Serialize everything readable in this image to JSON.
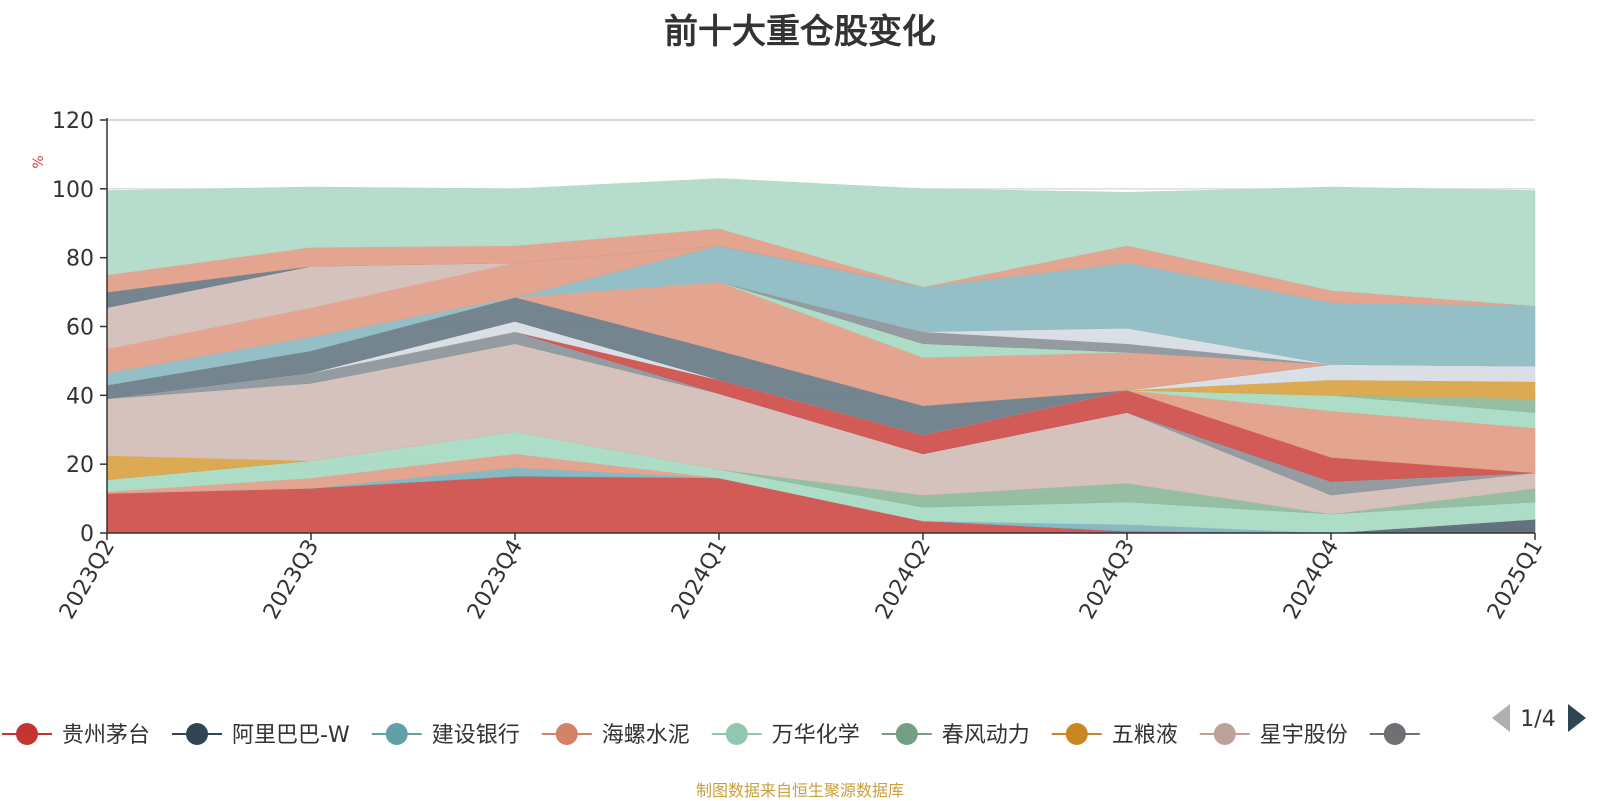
{
  "chart_data": {
    "type": "area",
    "title": "前十大重仓股变化",
    "ylabel": "%",
    "ylim": [
      0,
      120
    ],
    "y_ticks": [
      0,
      20,
      40,
      60,
      80,
      100,
      120
    ],
    "grid": true,
    "stacked": true,
    "categories": [
      "2023Q2",
      "2023Q3",
      "2023Q4",
      "2024Q1",
      "2024Q2",
      "2024Q3",
      "2024Q4",
      "2025Q1"
    ],
    "series": [
      {
        "name": "贵州茅台",
        "color": "#d0524f",
        "values": [
          11.5,
          13,
          16.5,
          16,
          3.5,
          0.5,
          0,
          0
        ]
      },
      {
        "name": "",
        "color": "#5a6b78",
        "values": [
          0,
          0,
          0,
          0,
          0,
          0,
          0,
          4
        ]
      },
      {
        "name": "建设银行",
        "color": "#7fb5c0",
        "values": [
          0,
          0,
          2.5,
          0,
          0,
          2,
          0,
          0
        ]
      },
      {
        "name": "海螺水泥",
        "color": "#e3a08a",
        "values": [
          0.5,
          3,
          4,
          0,
          0,
          0,
          0,
          0
        ]
      },
      {
        "name": "万华化学",
        "color": "#a9dbc4",
        "values": [
          3.5,
          5,
          6.5,
          2.5,
          4,
          6.5,
          5.5,
          5
        ]
      },
      {
        "name": "春风动力",
        "color": "#8fba9e",
        "values": [
          0,
          0,
          0,
          0,
          3.5,
          5.5,
          0,
          4
        ]
      },
      {
        "name": "五粮液",
        "color": "#dba54b",
        "values": [
          7,
          0,
          0,
          0,
          0,
          0,
          0,
          0
        ]
      },
      {
        "name": "星宇股份",
        "color": "#d4bfb8",
        "values": [
          16.5,
          22.5,
          25.5,
          22,
          12,
          20.5,
          5.5,
          4.5
        ]
      },
      {
        "name": "",
        "color": "#8e979d",
        "values": [
          0,
          3,
          3.5,
          0,
          0,
          0,
          4,
          0
        ]
      },
      {
        "name": "",
        "color": "#d0524f",
        "values": [
          0,
          0,
          0,
          4,
          5.5,
          6.5,
          7,
          0
        ]
      },
      {
        "name": "",
        "color": "#e3a08a",
        "values": [
          0,
          0,
          0,
          0,
          0,
          0,
          13.5,
          13
        ]
      },
      {
        "name": "",
        "color": "#a9dbc4",
        "values": [
          0,
          0,
          0,
          0,
          0,
          0,
          4.5,
          4.5
        ]
      },
      {
        "name": "",
        "color": "#8fba9e",
        "values": [
          0,
          0,
          0,
          0,
          0,
          0,
          0,
          4
        ]
      },
      {
        "name": "",
        "color": "#dba54b",
        "values": [
          0,
          0,
          0,
          0,
          0,
          0,
          4.5,
          5
        ]
      },
      {
        "name": "",
        "color": "#d8dde5",
        "values": [
          0,
          0,
          3,
          0,
          0,
          0,
          4.5,
          4.5
        ]
      },
      {
        "name": "",
        "color": "#6d7e8a",
        "values": [
          4,
          6.5,
          7,
          8.5,
          8.5,
          0,
          0,
          0
        ]
      },
      {
        "name": "",
        "color": "#e3a08a",
        "values": [
          0,
          0,
          0,
          20,
          14,
          11,
          0,
          0
        ]
      },
      {
        "name": "",
        "color": "#a9dbc4",
        "values": [
          0,
          0,
          0,
          0,
          4,
          0,
          0,
          0
        ]
      },
      {
        "name": "",
        "color": "#8e979d",
        "values": [
          0,
          0,
          0,
          0,
          3.5,
          2.5,
          0,
          0
        ]
      },
      {
        "name": "",
        "color": "#d8dde5",
        "values": [
          0,
          0,
          0,
          0,
          0,
          4.5,
          0,
          0
        ]
      },
      {
        "name": "",
        "color": "#8fbcc4",
        "values": [
          3.5,
          4,
          0,
          10.5,
          13,
          19,
          18,
          17.5
        ]
      },
      {
        "name": "",
        "color": "#e3a08a",
        "values": [
          7,
          8.5,
          10,
          0,
          0,
          5,
          3.5,
          0
        ]
      },
      {
        "name": "",
        "color": "#d4bfb8",
        "values": [
          12,
          12,
          0,
          0,
          0,
          0,
          0,
          0
        ]
      },
      {
        "name": "",
        "color": "#6d7e8a",
        "values": [
          4.5,
          0,
          0,
          0,
          0,
          0,
          0,
          0
        ]
      },
      {
        "name": "",
        "color": "#e3a08a",
        "values": [
          5,
          5.5,
          5,
          5,
          0,
          0,
          0,
          0
        ]
      },
      {
        "name": "",
        "color": "#b2dac8",
        "values": [
          24.5,
          17.5,
          16.5,
          14.5,
          28.5,
          15.5,
          30,
          33.5
        ]
      }
    ],
    "legend": {
      "position": "bottom",
      "page_indicator": "1/4",
      "items": [
        {
          "name": "贵州茅台",
          "color": "#c23531"
        },
        {
          "name": "阿里巴巴-W",
          "color": "#2f4554"
        },
        {
          "name": "建设银行",
          "color": "#61a0a8"
        },
        {
          "name": "海螺水泥",
          "color": "#d48265"
        },
        {
          "name": "万华化学",
          "color": "#91c7ae"
        },
        {
          "name": "春风动力",
          "color": "#749f83"
        },
        {
          "name": "五粮液",
          "color": "#ca8622"
        },
        {
          "name": "星宇股份",
          "color": "#bda29a"
        },
        {
          "name": "",
          "color": "#6e7074"
        }
      ]
    },
    "footnote": "制图数据来自恒生聚源数据库"
  }
}
